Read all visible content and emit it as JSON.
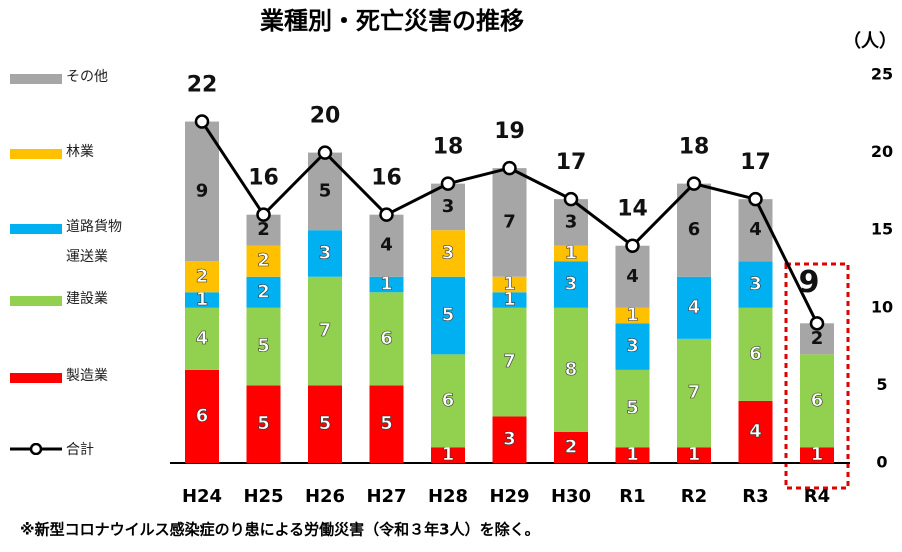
{
  "chart_data": {
    "type": "bar",
    "title": "業種別・死亡災害の推移",
    "y_label": "（人）",
    "note": "※新型コロナウイルス感染症のり患による労働災害（令和３年3人）を除く。",
    "categories": [
      "H24",
      "H25",
      "H26",
      "H27",
      "H28",
      "H29",
      "H30",
      "R1",
      "R2",
      "R3",
      "R4"
    ],
    "series": [
      {
        "name": "製造業",
        "color": "#ff0000",
        "values": [
          6,
          5,
          5,
          5,
          1,
          3,
          2,
          1,
          1,
          4,
          1
        ]
      },
      {
        "name": "建設業",
        "color": "#92d050",
        "values": [
          4,
          5,
          7,
          6,
          6,
          7,
          8,
          5,
          7,
          6,
          6
        ]
      },
      {
        "name": "道路貨物運送業",
        "color": "#00b0f0",
        "values": [
          1,
          2,
          3,
          1,
          5,
          1,
          3,
          3,
          4,
          3,
          0
        ]
      },
      {
        "name": "林業",
        "color": "#ffc000",
        "values": [
          2,
          2,
          0,
          0,
          3,
          1,
          1,
          1,
          0,
          0,
          0
        ]
      },
      {
        "name": "その他",
        "color": "#a6a6a6",
        "values": [
          9,
          2,
          5,
          4,
          3,
          7,
          3,
          4,
          6,
          4,
          2
        ]
      },
      {
        "name": "合計",
        "color": "#000000",
        "type": "line",
        "values": [
          22,
          16,
          20,
          16,
          18,
          19,
          17,
          14,
          18,
          17,
          9
        ]
      }
    ],
    "ylim": [
      0,
      25
    ],
    "yticks": [
      0,
      5,
      10,
      15,
      20,
      25
    ],
    "axis_side": "right",
    "grid": false
  }
}
